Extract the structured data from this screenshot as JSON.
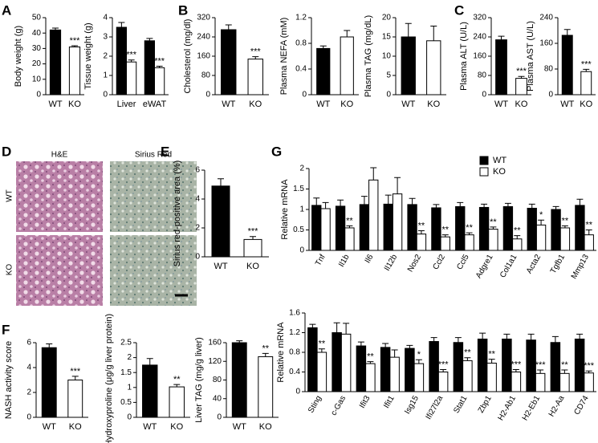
{
  "panel_labels": [
    "A",
    "B",
    "C",
    "D",
    "E",
    "F",
    "G"
  ],
  "histology": {
    "columns": [
      "H&E",
      "Sirius Red"
    ],
    "rows": [
      "WT",
      "KO"
    ]
  },
  "chart_data": [
    {
      "type": "bar",
      "y_label": "Body weight (g)",
      "categories": [
        "WT",
        "KO"
      ],
      "values": [
        42,
        31
      ],
      "errors": [
        1.2,
        0.8
      ],
      "colors": [
        "#000000",
        "#ffffff"
      ],
      "significance": [
        null,
        "***"
      ],
      "ylim": [
        0,
        50
      ],
      "yticks": [
        0,
        10,
        20,
        30,
        40,
        50
      ]
    },
    {
      "type": "bar",
      "y_label": "Tissue weight (g)",
      "categories": [
        "Liver",
        "eWAT"
      ],
      "series": [
        {
          "name": "WT",
          "color": "#000000",
          "values": [
            3.5,
            2.8
          ],
          "errors": [
            0.25,
            0.12
          ]
        },
        {
          "name": "KO",
          "color": "#ffffff",
          "values": [
            1.7,
            1.4
          ],
          "errors": [
            0.1,
            0.08
          ]
        }
      ],
      "significance": [
        "***",
        "***"
      ],
      "ylim": [
        0,
        4
      ],
      "yticks": [
        0,
        1,
        2,
        3,
        4
      ]
    },
    {
      "type": "bar",
      "y_label": "Cholesterol (mg/dl)",
      "categories": [
        "WT",
        "KO"
      ],
      "values": [
        270,
        148
      ],
      "errors": [
        20,
        10
      ],
      "colors": [
        "#000000",
        "#ffffff"
      ],
      "significance": [
        null,
        "***"
      ],
      "ylim": [
        0,
        320
      ],
      "yticks": [
        0,
        80,
        160,
        240,
        320
      ]
    },
    {
      "type": "bar",
      "y_label": "Plasma NEFA (mM)",
      "categories": [
        "WT",
        "KO"
      ],
      "values": [
        0.72,
        0.9
      ],
      "errors": [
        0.04,
        0.1
      ],
      "colors": [
        "#000000",
        "#ffffff"
      ],
      "significance": [
        null,
        null
      ],
      "ylim": [
        0,
        1.2
      ],
      "yticks": [
        0,
        0.4,
        0.8,
        1.2
      ]
    },
    {
      "type": "bar",
      "y_label": "Plasma TAG (mg/dL)",
      "categories": [
        "WT",
        "KO"
      ],
      "values": [
        15,
        14
      ],
      "errors": [
        3.5,
        3.8
      ],
      "colors": [
        "#000000",
        "#ffffff"
      ],
      "significance": [
        null,
        null
      ],
      "ylim": [
        0,
        20
      ],
      "yticks": [
        0,
        5,
        10,
        15,
        20
      ]
    },
    {
      "type": "bar",
      "y_label": "Plasma ALT (U/L)",
      "categories": [
        "WT",
        "KO"
      ],
      "values": [
        228,
        68
      ],
      "errors": [
        15,
        8
      ],
      "colors": [
        "#000000",
        "#ffffff"
      ],
      "significance": [
        null,
        "***"
      ],
      "ylim": [
        0,
        320
      ],
      "yticks": [
        0,
        80,
        160,
        240,
        320
      ]
    },
    {
      "type": "bar",
      "y_label": "Plasma AST (U/L)",
      "categories": [
        "WT",
        "KO"
      ],
      "values": [
        185,
        72
      ],
      "errors": [
        18,
        7
      ],
      "colors": [
        "#000000",
        "#ffffff"
      ],
      "significance": [
        null,
        "***"
      ],
      "ylim": [
        0,
        240
      ],
      "yticks": [
        0,
        80,
        160,
        240
      ]
    },
    {
      "type": "bar",
      "y_label": "Sirius red-positive area (%)",
      "categories": [
        "WT",
        "KO"
      ],
      "values": [
        4.9,
        1.2
      ],
      "errors": [
        0.5,
        0.2
      ],
      "colors": [
        "#000000",
        "#ffffff"
      ],
      "significance": [
        null,
        "***"
      ],
      "ylim": [
        0,
        6
      ],
      "yticks": [
        0,
        2,
        4,
        6
      ]
    },
    {
      "type": "bar",
      "y_label": "NASH activity score",
      "categories": [
        "WT",
        "KO"
      ],
      "values": [
        5.6,
        3.0
      ],
      "errors": [
        0.3,
        0.3
      ],
      "colors": [
        "#000000",
        "#ffffff"
      ],
      "significance": [
        null,
        "***"
      ],
      "ylim": [
        0,
        6
      ],
      "yticks": [
        0,
        2,
        4,
        6
      ]
    },
    {
      "type": "bar",
      "y_label": "Hydroxyproline (μg/g liver protein)",
      "categories": [
        "WT",
        "KO"
      ],
      "values": [
        1.75,
        1.02
      ],
      "errors": [
        0.22,
        0.08
      ],
      "colors": [
        "#000000",
        "#ffffff"
      ],
      "significance": [
        null,
        "**"
      ],
      "ylim": [
        0,
        2.5
      ],
      "yticks": [
        0,
        0.5,
        1,
        1.5,
        2,
        2.5
      ]
    },
    {
      "type": "bar",
      "y_label": "Liver TAG (mg/g liver)",
      "categories": [
        "WT",
        "KO"
      ],
      "values": [
        160,
        130
      ],
      "errors": [
        4,
        7
      ],
      "colors": [
        "#000000",
        "#ffffff"
      ],
      "significance": [
        null,
        "**"
      ],
      "ylim": [
        0,
        160
      ],
      "yticks": [
        0,
        40,
        80,
        120,
        160
      ]
    },
    {
      "type": "bar",
      "y_label": "Relative mRNA",
      "legend": true,
      "categories": [
        "Tnf",
        "Il1b",
        "Il6",
        "Il12b",
        "Nos2",
        "Ccl2",
        "Ccl5",
        "Adgre1",
        "Col1a1",
        "Acta2",
        "Tgfb1",
        "Mmp13"
      ],
      "series": [
        {
          "name": "WT",
          "color": "#000000",
          "values": [
            1.1,
            1.08,
            1.12,
            1.13,
            1.12,
            1.04,
            1.07,
            1.05,
            1.07,
            1.03,
            1.0,
            1.1
          ],
          "errors": [
            0.18,
            0.15,
            0.2,
            0.22,
            0.15,
            0.08,
            0.1,
            0.08,
            0.08,
            0.1,
            0.07,
            0.15
          ]
        },
        {
          "name": "KO",
          "color": "#ffffff",
          "values": [
            1.02,
            0.55,
            1.72,
            1.38,
            0.4,
            0.33,
            0.38,
            0.52,
            0.28,
            0.62,
            0.55,
            0.38
          ],
          "errors": [
            0.15,
            0.05,
            0.3,
            0.4,
            0.08,
            0.05,
            0.05,
            0.05,
            0.08,
            0.12,
            0.05,
            0.12
          ]
        }
      ],
      "significance": [
        null,
        "**",
        null,
        null,
        "**",
        "**",
        "**",
        "**",
        "**",
        "*",
        "**",
        "**"
      ],
      "ylim": [
        0,
        2
      ],
      "yticks": [
        0,
        0.5,
        1,
        1.5,
        2
      ]
    },
    {
      "type": "bar",
      "y_label": "Relative mRNA",
      "categories": [
        "Sting",
        "c-Gas",
        "Ifit3",
        "Ifit1",
        "Isg15",
        "Ifi27l2a",
        "Stat1",
        "Zbp1",
        "H2-Ab1",
        "H2-Eb1",
        "H2-Aa",
        "CD74"
      ],
      "series": [
        {
          "name": "WT",
          "color": "#000000",
          "values": [
            1.3,
            1.2,
            0.93,
            0.9,
            0.88,
            1.02,
            1.0,
            1.07,
            1.07,
            1.05,
            1.0,
            1.07
          ],
          "errors": [
            0.07,
            0.2,
            0.08,
            0.08,
            0.06,
            0.08,
            0.1,
            0.12,
            0.1,
            0.12,
            0.12,
            0.1
          ]
        },
        {
          "name": "KO",
          "color": "#ffffff",
          "values": [
            0.8,
            1.17,
            0.57,
            0.7,
            0.57,
            0.4,
            0.63,
            0.58,
            0.4,
            0.37,
            0.37,
            0.38
          ],
          "errors": [
            0.07,
            0.22,
            0.04,
            0.15,
            0.08,
            0.05,
            0.06,
            0.08,
            0.05,
            0.07,
            0.07,
            0.04
          ]
        }
      ],
      "significance": [
        "**",
        null,
        "**",
        null,
        "*",
        "***",
        "**",
        "**",
        "***",
        "***",
        "**",
        "***"
      ],
      "ylim": [
        0,
        1.6
      ],
      "yticks": [
        0,
        0.4,
        0.8,
        1.2,
        1.6
      ]
    }
  ]
}
